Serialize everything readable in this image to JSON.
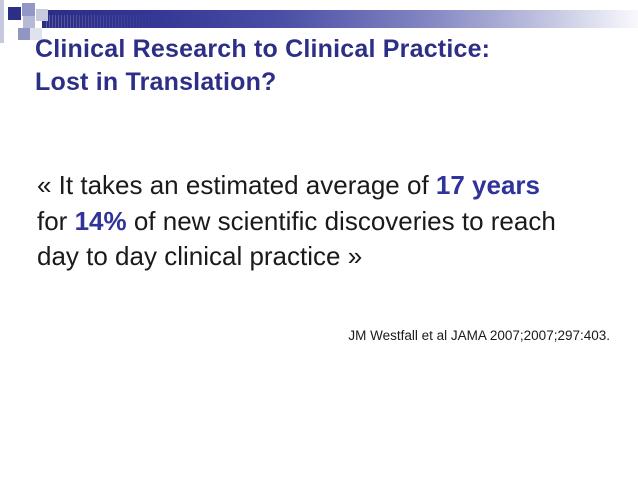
{
  "slide": {
    "title": {
      "line1": "Clinical Research to Clinical Practice:",
      "line2": "Lost in Translation?"
    },
    "quote": {
      "lines": [
        {
          "segments": [
            {
              "text": "« It takes an estimated average of "
            },
            {
              "text": "17 years",
              "highlight": true
            }
          ]
        },
        {
          "segments": [
            {
              "text": "for "
            },
            {
              "text": "14%",
              "highlight": true
            },
            {
              "text": " of new scientific discoveries to reach"
            }
          ]
        },
        {
          "segments": [
            {
              "text": "day to day clinical practice »"
            }
          ]
        }
      ]
    },
    "citation": "JM Westfall et al JAMA 2007;2007;297:403."
  },
  "colors": {
    "background": "#ffffff",
    "title_text": "#2d2f87",
    "body_text": "#1a1a1a",
    "highlight_blue": "#2f339b",
    "bar_dark": "#2b2d85",
    "bar_light": "#f9f9fc",
    "square_dark": "#2d2f87",
    "square_slate": "#9397c5",
    "square_slate_low": "#9095c2",
    "square_lavender": "#b7bad6",
    "square_light": "#c7c9df",
    "square_faint": "#e1e2ef",
    "left_strip": "#c6c8dd"
  }
}
